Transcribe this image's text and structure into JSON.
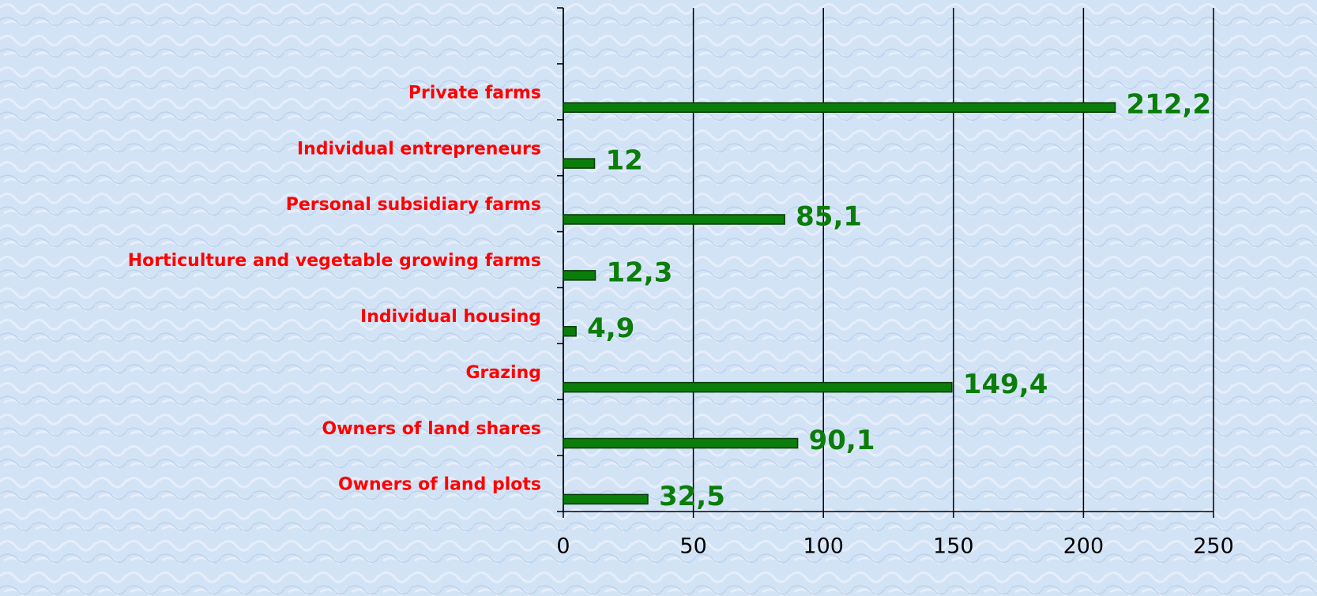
{
  "chart_data": {
    "type": "barh",
    "categories": [
      "Private farms",
      "Individual entrepreneurs",
      "Personal subsidiary farms",
      "Horticulture and vegetable growing farms",
      "Individual housing",
      "Grazing",
      "Owners of land shares",
      "Owners of land plots"
    ],
    "values": [
      212.2,
      12,
      85.1,
      12.3,
      4.9,
      149.4,
      90.1,
      32.5
    ],
    "value_labels": [
      "212,2",
      "12",
      "85,1",
      "12,3",
      "4,9",
      "149,4",
      "90,1",
      "32,5"
    ],
    "color": "#0b7d0b",
    "xlim": [
      0,
      250
    ],
    "xticks": [
      0,
      50,
      100,
      150,
      200,
      250
    ],
    "grid": true
  }
}
